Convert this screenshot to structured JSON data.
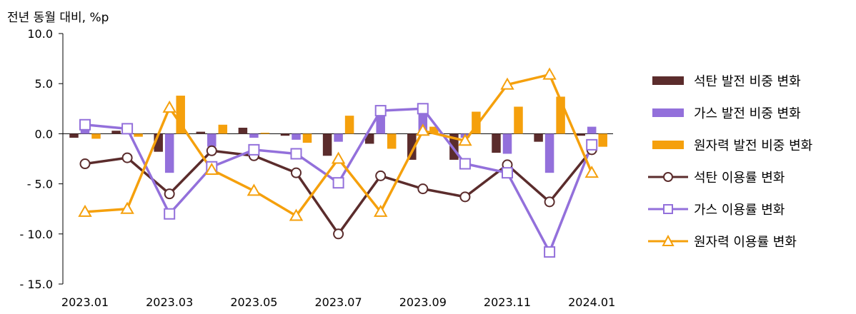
{
  "unit_label": "전년 동월 대비, %p",
  "colors": {
    "coal": "#5b2c2c",
    "gas": "#9370db",
    "nuclear": "#f5a00c"
  },
  "chart_data": {
    "type": "bar+line",
    "categories": [
      "2023.01",
      "2023.02",
      "2023.03",
      "2023.04",
      "2023.05",
      "2023.06",
      "2023.07",
      "2023.08",
      "2023.09",
      "2023.10",
      "2023.11",
      "2023.12",
      "2024.01"
    ],
    "x_tick_labels": [
      "2023.01",
      "2023.03",
      "2023.05",
      "2023.07",
      "2023.09",
      "2023.11",
      "2024.01"
    ],
    "y_tick_labels": [
      "10.0",
      "5.0",
      "0.0",
      "- 5.0",
      "- 10.0",
      "- 15.0"
    ],
    "ylim": [
      -15,
      10
    ],
    "grid": false,
    "legend_position": "right",
    "bar_series": [
      {
        "name": "석탄 발전 비중 변화",
        "color_key": "coal",
        "values": [
          -0.4,
          0.3,
          -1.8,
          0.2,
          0.6,
          -0.2,
          -2.2,
          -1.0,
          -2.6,
          -2.6,
          -1.9,
          -0.8,
          -0.2
        ]
      },
      {
        "name": "가스 발전 비중 변화",
        "color_key": "gas",
        "values": [
          0.5,
          0.2,
          -3.9,
          -1.3,
          -0.4,
          -0.6,
          -0.8,
          2.2,
          2.0,
          -0.4,
          -2.0,
          -3.9,
          0.7
        ]
      },
      {
        "name": "원자력 발전 비중 변화",
        "color_key": "nuclear",
        "values": [
          -0.5,
          -0.3,
          3.8,
          0.9,
          0.1,
          -0.9,
          1.8,
          -1.5,
          0.7,
          2.2,
          2.7,
          3.7,
          -1.3
        ]
      }
    ],
    "line_series": [
      {
        "name": "석탄 이용률 변화",
        "color_key": "coal",
        "marker": "circle",
        "values": [
          -3.0,
          -2.4,
          -6.0,
          -1.7,
          -2.2,
          -3.9,
          -10.0,
          -4.2,
          -5.5,
          -6.3,
          -3.1,
          -6.8,
          -1.6
        ]
      },
      {
        "name": "가스 이용률 변화",
        "color_key": "gas",
        "marker": "square",
        "values": [
          0.9,
          0.5,
          -8.0,
          -3.3,
          -1.6,
          -2.0,
          -4.9,
          2.3,
          2.5,
          -3.0,
          -3.9,
          -11.8,
          -1.1
        ]
      },
      {
        "name": "원자력 이용률 변화",
        "color_key": "nuclear",
        "marker": "triangle",
        "values": [
          -7.8,
          -7.5,
          2.6,
          -3.6,
          -5.7,
          -8.2,
          -2.5,
          -7.8,
          0.3,
          -0.7,
          4.9,
          5.9,
          -3.9
        ]
      }
    ]
  }
}
